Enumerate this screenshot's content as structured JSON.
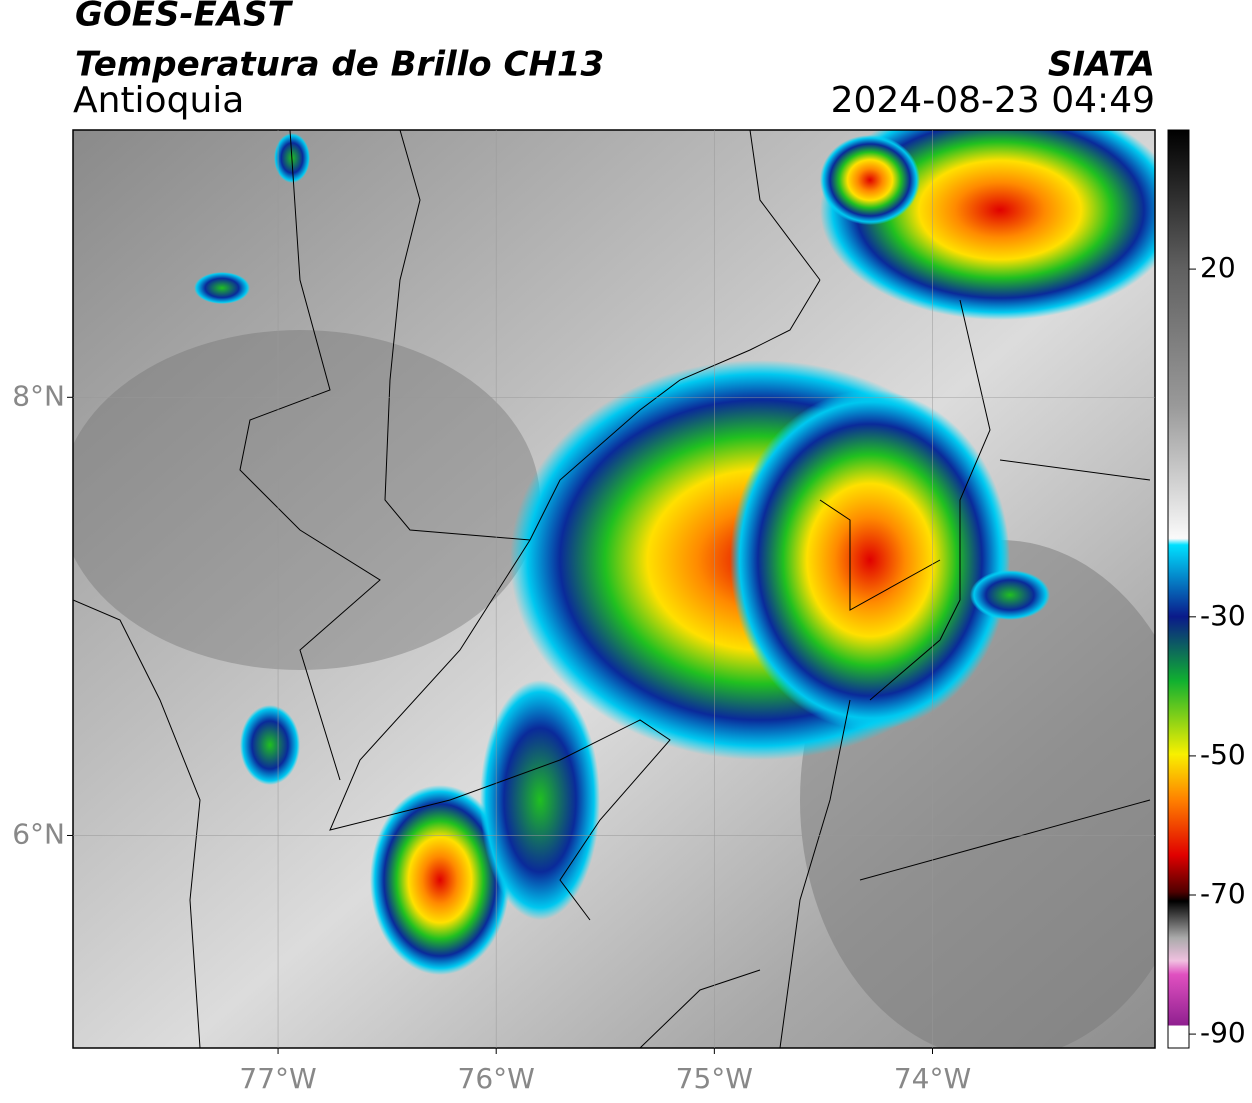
{
  "header": {
    "title": "GOES-EAST",
    "subtitle": "Temperatura de Brillo CH13",
    "region": "Antioquia",
    "source": "SIATA",
    "timestamp": "2024-08-23 04:49"
  },
  "map": {
    "xlim": [
      -77.94,
      -72.98
    ],
    "ylim": [
      5.03,
      9.22
    ],
    "grid": true,
    "xticks": [
      {
        "value": -77,
        "label": "77°W"
      },
      {
        "value": -76,
        "label": "76°W"
      },
      {
        "value": -75,
        "label": "75°W"
      },
      {
        "value": -74,
        "label": "74°W"
      }
    ],
    "yticks": [
      {
        "value": 8,
        "label": "8°N"
      },
      {
        "value": 6,
        "label": "6°N"
      }
    ]
  },
  "colorbar": {
    "lim": [
      -92,
      40
    ],
    "ticks": [
      20,
      -30,
      -50,
      -70,
      -90
    ]
  }
}
